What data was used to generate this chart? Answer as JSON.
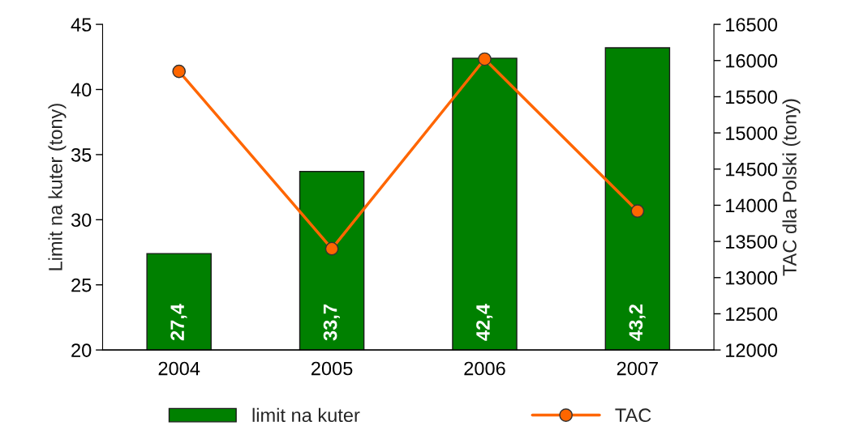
{
  "chart_data": {
    "type": "bar",
    "categories": [
      "2004",
      "2005",
      "2006",
      "2007"
    ],
    "ylabel": "Limit na kuter (tony)",
    "y2label": "TAC dla Polski (tony)",
    "series": [
      {
        "name": "limit na kuter",
        "color": "#008000",
        "values": [
          27.4,
          33.7,
          42.4,
          43.2
        ],
        "value_labels": [
          "27,4",
          "33,7",
          "42,4",
          "43,2"
        ]
      },
      {
        "name": "TAC",
        "type": "line",
        "axis": "y2",
        "color": "#ff6600",
        "marker": "circle",
        "values": [
          15850,
          13400,
          16020,
          13920
        ]
      }
    ],
    "ylim": [
      20,
      45
    ],
    "yticks": [
      20,
      25,
      30,
      35,
      40,
      45
    ],
    "y2lim": [
      12000,
      16500
    ],
    "y2ticks": [
      12000,
      12500,
      13000,
      13500,
      14000,
      14500,
      15000,
      15500,
      16000,
      16500
    ],
    "grid": false,
    "legend": "bottom"
  }
}
